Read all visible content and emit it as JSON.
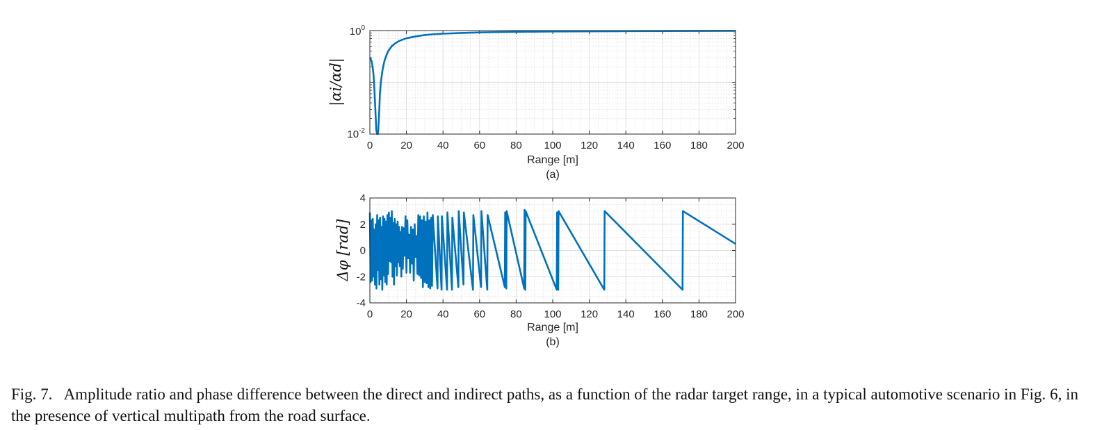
{
  "caption": {
    "label": "Fig. 7.",
    "text": "Amplitude ratio and phase difference between the direct and indirect paths, as a function of the radar target range, in a typical automotive scenario in Fig. 6, in the presence of vertical multipath from the road surface."
  },
  "colors": {
    "line": "#0072BD",
    "axis": "#262626",
    "grid": "#dcdcdc"
  },
  "chart_data": [
    {
      "type": "line",
      "subtitle": "(a)",
      "xlabel": "Range [m]",
      "ylabel": "|αi/αd|",
      "yscale": "log",
      "xlim": [
        0,
        200
      ],
      "ylim": [
        0.01,
        1
      ],
      "xticks": [
        "0",
        "20",
        "40",
        "60",
        "80",
        "100",
        "120",
        "140",
        "160",
        "180",
        "200"
      ],
      "yticks": [
        {
          "base": "10",
          "exp": "0"
        },
        {
          "base": "10",
          "exp": "-2"
        }
      ],
      "grid": true,
      "series": [
        {
          "name": "amplitude ratio",
          "x": [
            0,
            0.5,
            1,
            1.5,
            2,
            2.5,
            3,
            3.5,
            4,
            4.3,
            4.6,
            5,
            5.5,
            6,
            7,
            8,
            9,
            10,
            12,
            14,
            16,
            18,
            20,
            25,
            30,
            35,
            40,
            50,
            60,
            70,
            80,
            100,
            120,
            140,
            160,
            180,
            200
          ],
          "y": [
            0.3,
            0.28,
            0.25,
            0.2,
            0.14,
            0.07,
            0.03,
            0.012,
            0.01,
            0.01,
            0.012,
            0.022,
            0.06,
            0.1,
            0.18,
            0.26,
            0.33,
            0.4,
            0.5,
            0.57,
            0.63,
            0.67,
            0.71,
            0.77,
            0.82,
            0.85,
            0.87,
            0.9,
            0.92,
            0.935,
            0.945,
            0.96,
            0.968,
            0.974,
            0.979,
            0.982,
            0.985
          ]
        }
      ]
    },
    {
      "type": "line",
      "subtitle": "(b)",
      "xlabel": "Range [m]",
      "ylabel": "Δφ [rad]",
      "xlim": [
        0,
        200
      ],
      "ylim": [
        -4,
        4
      ],
      "xticks": [
        "0",
        "20",
        "40",
        "60",
        "80",
        "100",
        "120",
        "140",
        "160",
        "180",
        "200"
      ],
      "yticks": [
        "4",
        "2",
        "0",
        "-2",
        "-4"
      ],
      "ytick_values": [
        4,
        2,
        0,
        -2,
        -4
      ],
      "grid": true,
      "series": [
        {
          "name": "phase difference",
          "x": [
            0,
            0.4,
            0.8,
            1.2,
            1.6,
            2.0,
            2.4,
            2.8,
            3.2,
            3.6,
            4.0,
            4.4,
            4.8,
            5.2,
            5.6,
            6.0,
            6.4,
            6.8,
            7.2,
            7.6,
            8.0,
            8.4,
            8.8,
            9.2,
            9.6,
            10.0,
            10.4,
            10.8,
            11.2,
            11.6,
            12.0,
            12.4,
            12.8,
            13.2,
            13.6,
            14.0,
            14.4,
            14.8,
            15.2,
            15.6,
            16.0,
            16.4,
            16.8,
            17.2,
            17.6,
            18.0,
            18.5,
            19.0,
            19.5,
            20.0,
            20.5,
            21.0,
            21.5,
            22.0,
            22.5,
            23.0,
            23.5,
            24.0,
            24.5,
            25.0,
            25.5,
            26.0,
            26.5,
            27.0,
            27.5,
            28.0,
            28.5,
            29.0,
            29.5,
            30.0,
            30.5,
            31.0,
            31.5,
            32.0,
            32.5,
            33.0,
            33.5,
            34.0,
            34.4,
            37.0,
            37.2,
            39.2,
            39.4,
            42.2,
            42.4,
            44.9,
            45.1,
            48.4,
            48.6,
            51.2,
            51.4,
            56.4,
            56.6,
            60.8,
            61.0,
            64.2,
            64.4,
            73.8,
            74.0,
            74.6,
            74.8,
            84.4,
            84.6,
            85.0,
            85.2,
            102.2,
            102.4,
            103.0,
            103.2,
            128.2,
            128.4,
            171.0,
            171.2,
            200
          ],
          "y": [
            2.9,
            -2.4,
            2.3,
            -2.3,
            2.4,
            -2.0,
            1.6,
            -2.6,
            2.0,
            -2.9,
            2.7,
            -1.5,
            2.3,
            -2.6,
            2.5,
            -2.2,
            1.8,
            -3.0,
            2.6,
            -1.9,
            2.4,
            -2.4,
            2.2,
            -2.6,
            2.7,
            -1.8,
            2.9,
            -0.8,
            2.5,
            -0.9,
            3.0,
            -2.0,
            2.1,
            -2.6,
            2.4,
            -1.2,
            2.0,
            -1.9,
            2.2,
            -0.9,
            1.8,
            -1.2,
            1.4,
            -2.0,
            1.8,
            -1.4,
            1.7,
            -0.4,
            2.6,
            -1.7,
            2.3,
            -0.6,
            1.2,
            -1.7,
            1.8,
            -1.0,
            1.6,
            -2.3,
            2.0,
            -0.5,
            1.1,
            -1.8,
            2.7,
            -1.9,
            2.6,
            -2.1,
            2.3,
            -2.8,
            2.6,
            -2.4,
            2.2,
            -2.5,
            2.9,
            -2.8,
            2.3,
            -2.9,
            2.5,
            -2.7,
            2.7,
            -2.9,
            2.6,
            -3.0,
            2.6,
            -3.0,
            2.9,
            -3.0,
            2.5,
            -2.8,
            3.0,
            -2.6,
            2.9,
            -3.0,
            2.7,
            -2.8,
            3.0,
            -3.0,
            2.7,
            -2.8,
            2.9,
            -2.9,
            3.0,
            -2.9,
            3.1,
            -3.0,
            3.0,
            -3.0,
            2.9,
            -3.0,
            3.0,
            -3.0,
            3.0,
            -3.0,
            3.0,
            0.5
          ]
        }
      ]
    }
  ]
}
